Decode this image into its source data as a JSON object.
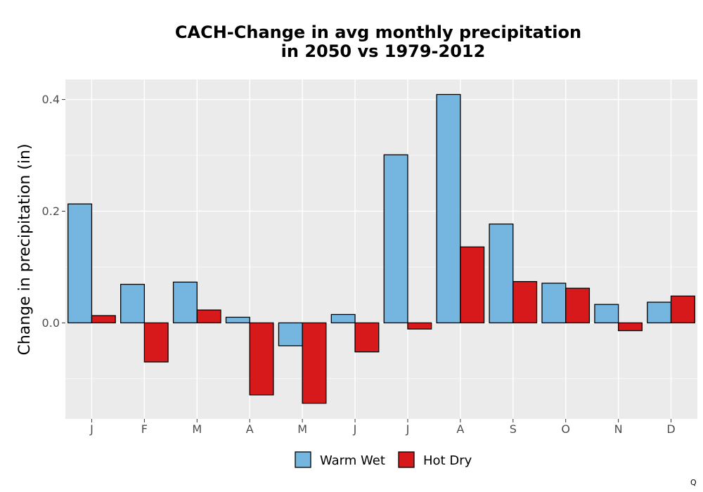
{
  "chart_data": {
    "type": "bar",
    "title": [
      "CACH-Change in avg monthly precipitation",
      "in 2050 vs 1979-2012"
    ],
    "xlabel": "",
    "ylabel": "Change in precipitation (in)",
    "categories": [
      "J",
      "F",
      "M",
      "A",
      "M",
      "J",
      "J",
      "A",
      "S",
      "O",
      "N",
      "D"
    ],
    "series": [
      {
        "name": "Warm Wet",
        "color": "#74b6e0",
        "values": [
          0.213,
          0.069,
          0.073,
          0.01,
          -0.041,
          0.015,
          0.301,
          0.409,
          0.177,
          0.071,
          0.033,
          0.037
        ]
      },
      {
        "name": "Hot Dry",
        "color": "#d7191c",
        "values": [
          0.013,
          -0.07,
          0.023,
          -0.129,
          -0.144,
          -0.052,
          -0.011,
          0.136,
          0.074,
          0.062,
          -0.014,
          0.048
        ]
      }
    ],
    "ylim": [
      -0.172,
      0.436
    ],
    "yticks": [
      0.0,
      0.2,
      0.4
    ],
    "ytick_labels": [
      "0.0",
      "0.2",
      "0.4"
    ],
    "grid": true,
    "legend_position": "bottom"
  },
  "corner_mark": "Q"
}
